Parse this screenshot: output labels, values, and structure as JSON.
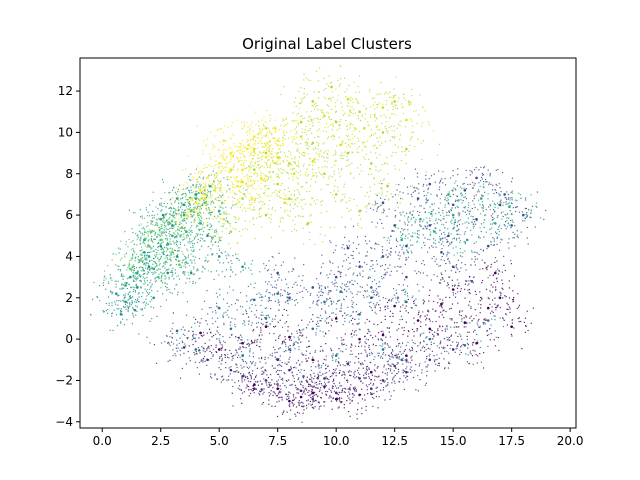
{
  "chart_data": {
    "type": "scatter",
    "title": "Original Label Clusters",
    "xlabel": "",
    "ylabel": "",
    "xlim": [
      -0.95,
      20.25
    ],
    "ylim": [
      -4.3,
      13.6
    ],
    "x_ticks": [
      {
        "value": 0.0,
        "label": "0.0"
      },
      {
        "value": 2.5,
        "label": "2.5"
      },
      {
        "value": 5.0,
        "label": "5.0"
      },
      {
        "value": 7.5,
        "label": "7.5"
      },
      {
        "value": 10.0,
        "label": "10.0"
      },
      {
        "value": 12.5,
        "label": "12.5"
      },
      {
        "value": 15.0,
        "label": "15.0"
      },
      {
        "value": 17.5,
        "label": "17.5"
      },
      {
        "value": 20.0,
        "label": "20.0"
      }
    ],
    "y_ticks": [
      {
        "value": -4,
        "label": "−4"
      },
      {
        "value": -2,
        "label": "−2"
      },
      {
        "value": 0,
        "label": "0"
      },
      {
        "value": 2,
        "label": "2"
      },
      {
        "value": 4,
        "label": "4"
      },
      {
        "value": 6,
        "label": "6"
      },
      {
        "value": 8,
        "label": "8"
      },
      {
        "value": 10,
        "label": "10"
      },
      {
        "value": 12,
        "label": "12"
      }
    ],
    "grid": false,
    "legend": "none",
    "colormap": "viridis",
    "series": [
      {
        "color": "#440154",
        "label_index": 0,
        "points": [
          [
            9.0,
            -2.6
          ],
          [
            8.5,
            -2.8
          ],
          [
            10.0,
            -2.9
          ],
          [
            7.5,
            -2.4
          ],
          [
            11.0,
            -2.7
          ],
          [
            6.5,
            -2.2
          ],
          [
            8.0,
            -3.0
          ],
          [
            9.5,
            -2.3
          ],
          [
            15.5,
            0.8
          ],
          [
            16.5,
            1.5
          ],
          [
            14.0,
            0.5
          ],
          [
            17.0,
            2.0
          ],
          [
            12.0,
            0.2
          ],
          [
            11.0,
            0.0
          ],
          [
            8.0,
            0.1
          ],
          [
            6.0,
            -0.2
          ],
          [
            13.5,
            0.9
          ],
          [
            16.0,
            -0.2
          ],
          [
            10.0,
            1.0
          ],
          [
            5.0,
            -0.5
          ],
          [
            17.5,
            0.6
          ],
          [
            15.0,
            2.4
          ],
          [
            9.0,
            -1.0
          ],
          [
            13.0,
            -0.8
          ],
          [
            14.5,
            1.7
          ],
          [
            7.0,
            0.6
          ],
          [
            11.5,
            -1.6
          ],
          [
            16.8,
            3.2
          ],
          [
            12.5,
            1.6
          ],
          [
            4.2,
            0.3
          ]
        ]
      },
      {
        "color": "#472c7a",
        "label_index": 1,
        "points": [
          [
            8.5,
            -2.5
          ],
          [
            10.0,
            -2.6
          ],
          [
            7.0,
            -2.0
          ],
          [
            11.5,
            -2.4
          ],
          [
            6.0,
            -1.8
          ],
          [
            9.0,
            -2.9
          ],
          [
            12.0,
            -2.0
          ],
          [
            5.5,
            -1.5
          ],
          [
            13.0,
            -1.6
          ],
          [
            8.0,
            -1.5
          ],
          [
            10.5,
            -1.2
          ],
          [
            4.5,
            -1.0
          ],
          [
            7.5,
            -1.0
          ],
          [
            14.0,
            -1.0
          ],
          [
            9.5,
            -1.9
          ],
          [
            3.5,
            -0.4
          ],
          [
            11.0,
            -1.9
          ],
          [
            6.5,
            -2.4
          ],
          [
            12.5,
            -1.3
          ],
          [
            15.0,
            -0.5
          ]
        ]
      },
      {
        "color": "#3b518b",
        "label_index": 2,
        "points": [
          [
            14.0,
            5.5
          ],
          [
            15.0,
            6.5
          ],
          [
            13.0,
            4.5
          ],
          [
            16.0,
            5.8
          ],
          [
            12.0,
            4.0
          ],
          [
            15.5,
            7.2
          ],
          [
            17.0,
            6.5
          ],
          [
            14.5,
            4.2
          ],
          [
            11.0,
            3.5
          ],
          [
            16.5,
            4.5
          ],
          [
            13.5,
            6.8
          ],
          [
            12.5,
            5.5
          ],
          [
            10.0,
            3.0
          ],
          [
            17.5,
            5.5
          ],
          [
            15.0,
            3.5
          ],
          [
            9.0,
            2.5
          ],
          [
            14.0,
            7.5
          ],
          [
            16.0,
            7.8
          ],
          [
            11.5,
            2.0
          ],
          [
            13.0,
            3.0
          ],
          [
            8.0,
            2.0
          ],
          [
            17.2,
            7.0
          ],
          [
            15.8,
            2.8
          ],
          [
            12.0,
            6.6
          ],
          [
            10.5,
            4.4
          ],
          [
            18.0,
            6.0
          ],
          [
            14.8,
            5.0
          ],
          [
            7.5,
            3.2
          ]
        ]
      },
      {
        "color": "#2c718e",
        "label_index": 3,
        "points": [
          [
            7.0,
            1.0
          ],
          [
            9.0,
            0.5
          ],
          [
            11.0,
            1.2
          ],
          [
            5.5,
            0.5
          ],
          [
            13.0,
            1.8
          ],
          [
            8.0,
            -0.5
          ],
          [
            10.0,
            -0.8
          ],
          [
            12.0,
            -0.5
          ],
          [
            6.0,
            -0.8
          ],
          [
            4.0,
            -0.5
          ],
          [
            14.0,
            0.0
          ],
          [
            15.5,
            -0.3
          ],
          [
            9.5,
            1.8
          ],
          [
            7.5,
            2.2
          ],
          [
            11.5,
            2.5
          ],
          [
            6.5,
            1.9
          ],
          [
            3.2,
            0.4
          ],
          [
            16.5,
            0.9
          ],
          [
            8.6,
            -1.8
          ],
          [
            12.8,
            -1.0
          ],
          [
            10.2,
            2.3
          ],
          [
            5.0,
            1.5
          ]
        ]
      },
      {
        "color": "#21908d",
        "label_index": 4,
        "points": [
          [
            1.5,
            2.5
          ],
          [
            2.0,
            3.5
          ],
          [
            1.0,
            1.8
          ],
          [
            2.5,
            4.5
          ],
          [
            3.0,
            5.5
          ],
          [
            1.2,
            3.0
          ],
          [
            2.8,
            3.2
          ],
          [
            0.8,
            1.2
          ],
          [
            3.5,
            6.5
          ],
          [
            2.2,
            2.0
          ],
          [
            4.0,
            7.0
          ],
          [
            1.8,
            4.2
          ],
          [
            3.2,
            4.0
          ],
          [
            0.6,
            2.2
          ],
          [
            2.6,
            6.0
          ],
          [
            4.5,
            5.0
          ],
          [
            1.4,
            1.4
          ],
          [
            3.8,
            3.2
          ],
          [
            5.0,
            4.0
          ],
          [
            6.0,
            3.5
          ]
        ]
      },
      {
        "color": "#27ad81",
        "label_index": 5,
        "points": [
          [
            2.0,
            4.0
          ],
          [
            3.0,
            5.0
          ],
          [
            1.5,
            3.2
          ],
          [
            2.5,
            5.8
          ],
          [
            3.5,
            6.0
          ],
          [
            4.0,
            6.8
          ],
          [
            1.0,
            2.6
          ],
          [
            2.8,
            4.6
          ],
          [
            3.6,
            5.2
          ],
          [
            4.6,
            7.4
          ],
          [
            2.2,
            3.4
          ],
          [
            1.8,
            4.8
          ],
          [
            5.0,
            6.2
          ],
          [
            4.2,
            5.6
          ],
          [
            3.2,
            6.8
          ],
          [
            15.0,
            6.0
          ],
          [
            16.2,
            6.8
          ],
          [
            14.2,
            5.2
          ],
          [
            16.8,
            5.6
          ],
          [
            13.6,
            5.8
          ],
          [
            15.6,
            4.8
          ],
          [
            12.8,
            4.8
          ],
          [
            17.4,
            6.4
          ],
          [
            14.8,
            7.0
          ]
        ]
      },
      {
        "color": "#5cc863",
        "label_index": 6,
        "points": [
          [
            2.5,
            4.8
          ],
          [
            3.0,
            4.2
          ],
          [
            2.0,
            4.5
          ],
          [
            1.6,
            3.8
          ],
          [
            3.4,
            5.4
          ],
          [
            2.4,
            3.0
          ],
          [
            3.8,
            6.2
          ],
          [
            1.2,
            3.4
          ],
          [
            4.4,
            6.6
          ],
          [
            2.9,
            5.6
          ],
          [
            2.1,
            5.2
          ],
          [
            3.3,
            3.6
          ]
        ]
      },
      {
        "color": "#aadc32",
        "label_index": 7,
        "points": [
          [
            8.0,
            8.5
          ],
          [
            9.0,
            9.5
          ],
          [
            10.0,
            10.5
          ],
          [
            7.0,
            9.0
          ],
          [
            11.0,
            11.0
          ],
          [
            9.5,
            8.0
          ],
          [
            8.5,
            10.5
          ],
          [
            12.0,
            10.0
          ],
          [
            7.5,
            7.5
          ],
          [
            10.5,
            9.0
          ],
          [
            6.5,
            8.2
          ],
          [
            11.5,
            8.5
          ],
          [
            9.0,
            11.5
          ],
          [
            8.0,
            6.8
          ],
          [
            12.5,
            11.5
          ],
          [
            10.0,
            7.0
          ],
          [
            7.0,
            6.0
          ],
          [
            6.0,
            6.8
          ],
          [
            11.0,
            6.2
          ],
          [
            5.5,
            5.2
          ],
          [
            13.0,
            9.2
          ],
          [
            9.8,
            12.2
          ],
          [
            8.8,
            5.6
          ],
          [
            12.2,
            7.4
          ]
        ]
      },
      {
        "color": "#d8e219",
        "label_index": 8,
        "points": [
          [
            6.5,
            9.2
          ],
          [
            7.5,
            8.8
          ],
          [
            5.5,
            8.2
          ],
          [
            8.5,
            9.8
          ],
          [
            9.5,
            10.8
          ],
          [
            10.5,
            11.6
          ],
          [
            4.8,
            7.2
          ],
          [
            7.0,
            10.2
          ],
          [
            8.2,
            8.0
          ],
          [
            11.2,
            10.2
          ],
          [
            6.0,
            7.6
          ],
          [
            9.0,
            8.6
          ],
          [
            12.0,
            11.2
          ],
          [
            4.4,
            6.8
          ],
          [
            10.2,
            9.4
          ],
          [
            7.8,
            6.6
          ],
          [
            13.0,
            10.6
          ],
          [
            5.2,
            5.8
          ]
        ]
      },
      {
        "color": "#fde725",
        "label_index": 9,
        "points": [
          [
            5.5,
            9.0
          ],
          [
            6.0,
            8.2
          ],
          [
            5.0,
            8.5
          ],
          [
            6.5,
            9.8
          ],
          [
            4.5,
            7.8
          ],
          [
            7.0,
            8.8
          ],
          [
            6.2,
            9.2
          ],
          [
            5.8,
            7.4
          ],
          [
            4.2,
            7.2
          ],
          [
            7.5,
            9.6
          ],
          [
            5.2,
            9.6
          ],
          [
            6.8,
            7.8
          ],
          [
            4.0,
            6.6
          ],
          [
            7.4,
            10.2
          ],
          [
            6.4,
            6.8
          ],
          [
            3.6,
            6.0
          ]
        ]
      }
    ]
  }
}
